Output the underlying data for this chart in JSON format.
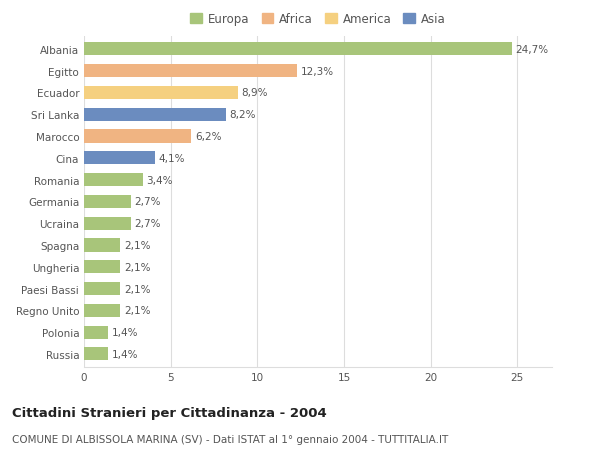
{
  "categories": [
    "Albania",
    "Egitto",
    "Ecuador",
    "Sri Lanka",
    "Marocco",
    "Cina",
    "Romania",
    "Germania",
    "Ucraina",
    "Spagna",
    "Ungheria",
    "Paesi Bassi",
    "Regno Unito",
    "Polonia",
    "Russia"
  ],
  "values": [
    24.7,
    12.3,
    8.9,
    8.2,
    6.2,
    4.1,
    3.4,
    2.7,
    2.7,
    2.1,
    2.1,
    2.1,
    2.1,
    1.4,
    1.4
  ],
  "labels": [
    "24,7%",
    "12,3%",
    "8,9%",
    "8,2%",
    "6,2%",
    "4,1%",
    "3,4%",
    "2,7%",
    "2,7%",
    "2,1%",
    "2,1%",
    "2,1%",
    "2,1%",
    "1,4%",
    "1,4%"
  ],
  "colors": [
    "#a8c57a",
    "#f0b482",
    "#f5d080",
    "#6b8cbf",
    "#f0b482",
    "#6b8cbf",
    "#a8c57a",
    "#a8c57a",
    "#a8c57a",
    "#a8c57a",
    "#a8c57a",
    "#a8c57a",
    "#a8c57a",
    "#a8c57a",
    "#a8c57a"
  ],
  "continent_colors": {
    "Europa": "#a8c57a",
    "Africa": "#f0b482",
    "America": "#f5d080",
    "Asia": "#6b8cbf"
  },
  "xlim": [
    0,
    27
  ],
  "xticks": [
    0,
    5,
    10,
    15,
    20,
    25
  ],
  "title": "Cittadini Stranieri per Cittadinanza - 2004",
  "subtitle": "COMUNE DI ALBISSOLA MARINA (SV) - Dati ISTAT al 1° gennaio 2004 - TUTTITALIA.IT",
  "background_color": "#ffffff",
  "grid_color": "#dddddd",
  "bar_height": 0.6,
  "label_fontsize": 7.5,
  "tick_fontsize": 7.5,
  "title_fontsize": 9.5,
  "subtitle_fontsize": 7.5,
  "legend_fontsize": 8.5
}
